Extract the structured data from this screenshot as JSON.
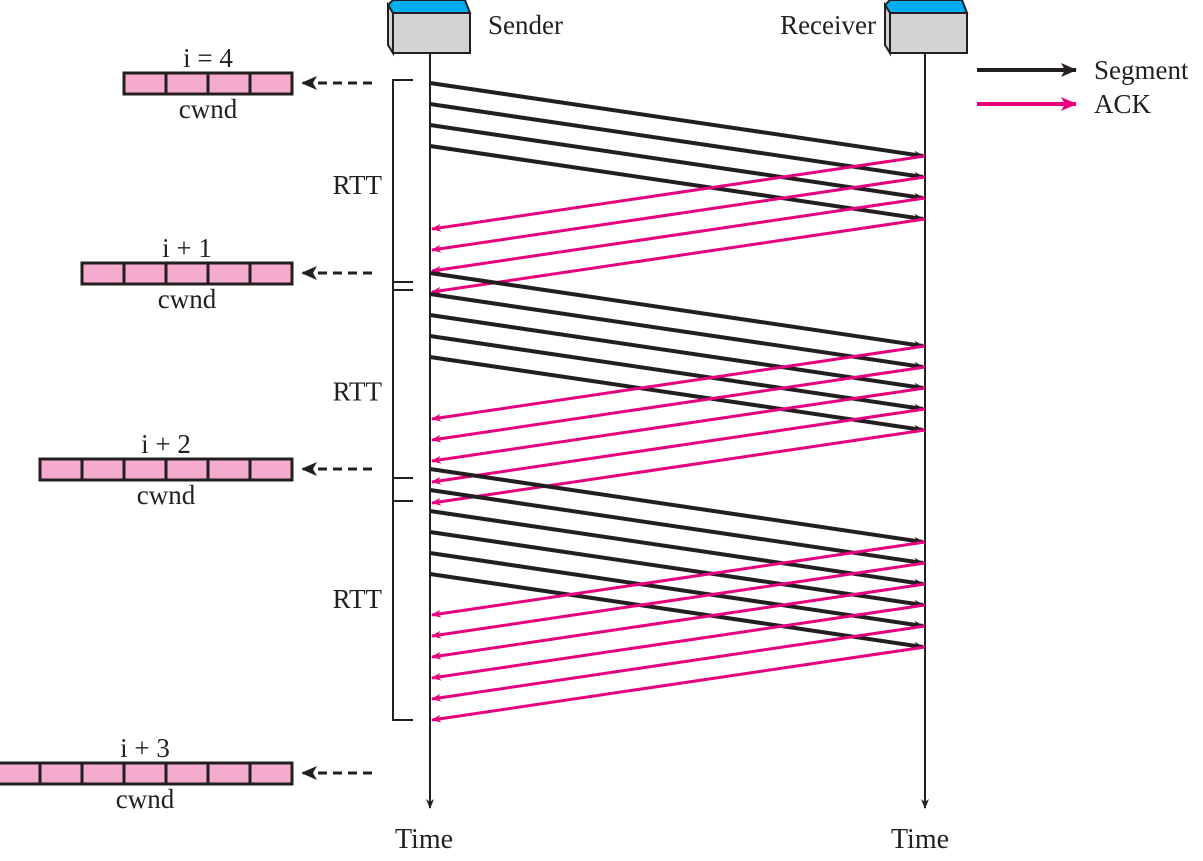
{
  "sender": {
    "label": "Sender",
    "time_label": "Time"
  },
  "receiver": {
    "label": "Receiver",
    "time_label": "Time"
  },
  "legend": {
    "segment": {
      "label": "Segment",
      "color": "#231f20"
    },
    "ack": {
      "label": "ACK",
      "color": "#e6007e"
    }
  },
  "colors": {
    "host_top": "#00aeef",
    "host_body": "#d1d3d4",
    "cwnd_fill": "#f4abcd"
  },
  "rounds": [
    {
      "label": "i = 4",
      "cwnd_label": "cwnd",
      "cwnd_size": 4,
      "rtt_label": "RTT"
    },
    {
      "label": "i + 1",
      "cwnd_label": "cwnd",
      "cwnd_size": 5,
      "rtt_label": "RTT"
    },
    {
      "label": "i + 2",
      "cwnd_label": "cwnd",
      "cwnd_size": 6,
      "rtt_label": "RTT"
    }
  ],
  "final_window": {
    "label": "i + 3",
    "cwnd_label": "cwnd",
    "cwnd_size": 7
  }
}
